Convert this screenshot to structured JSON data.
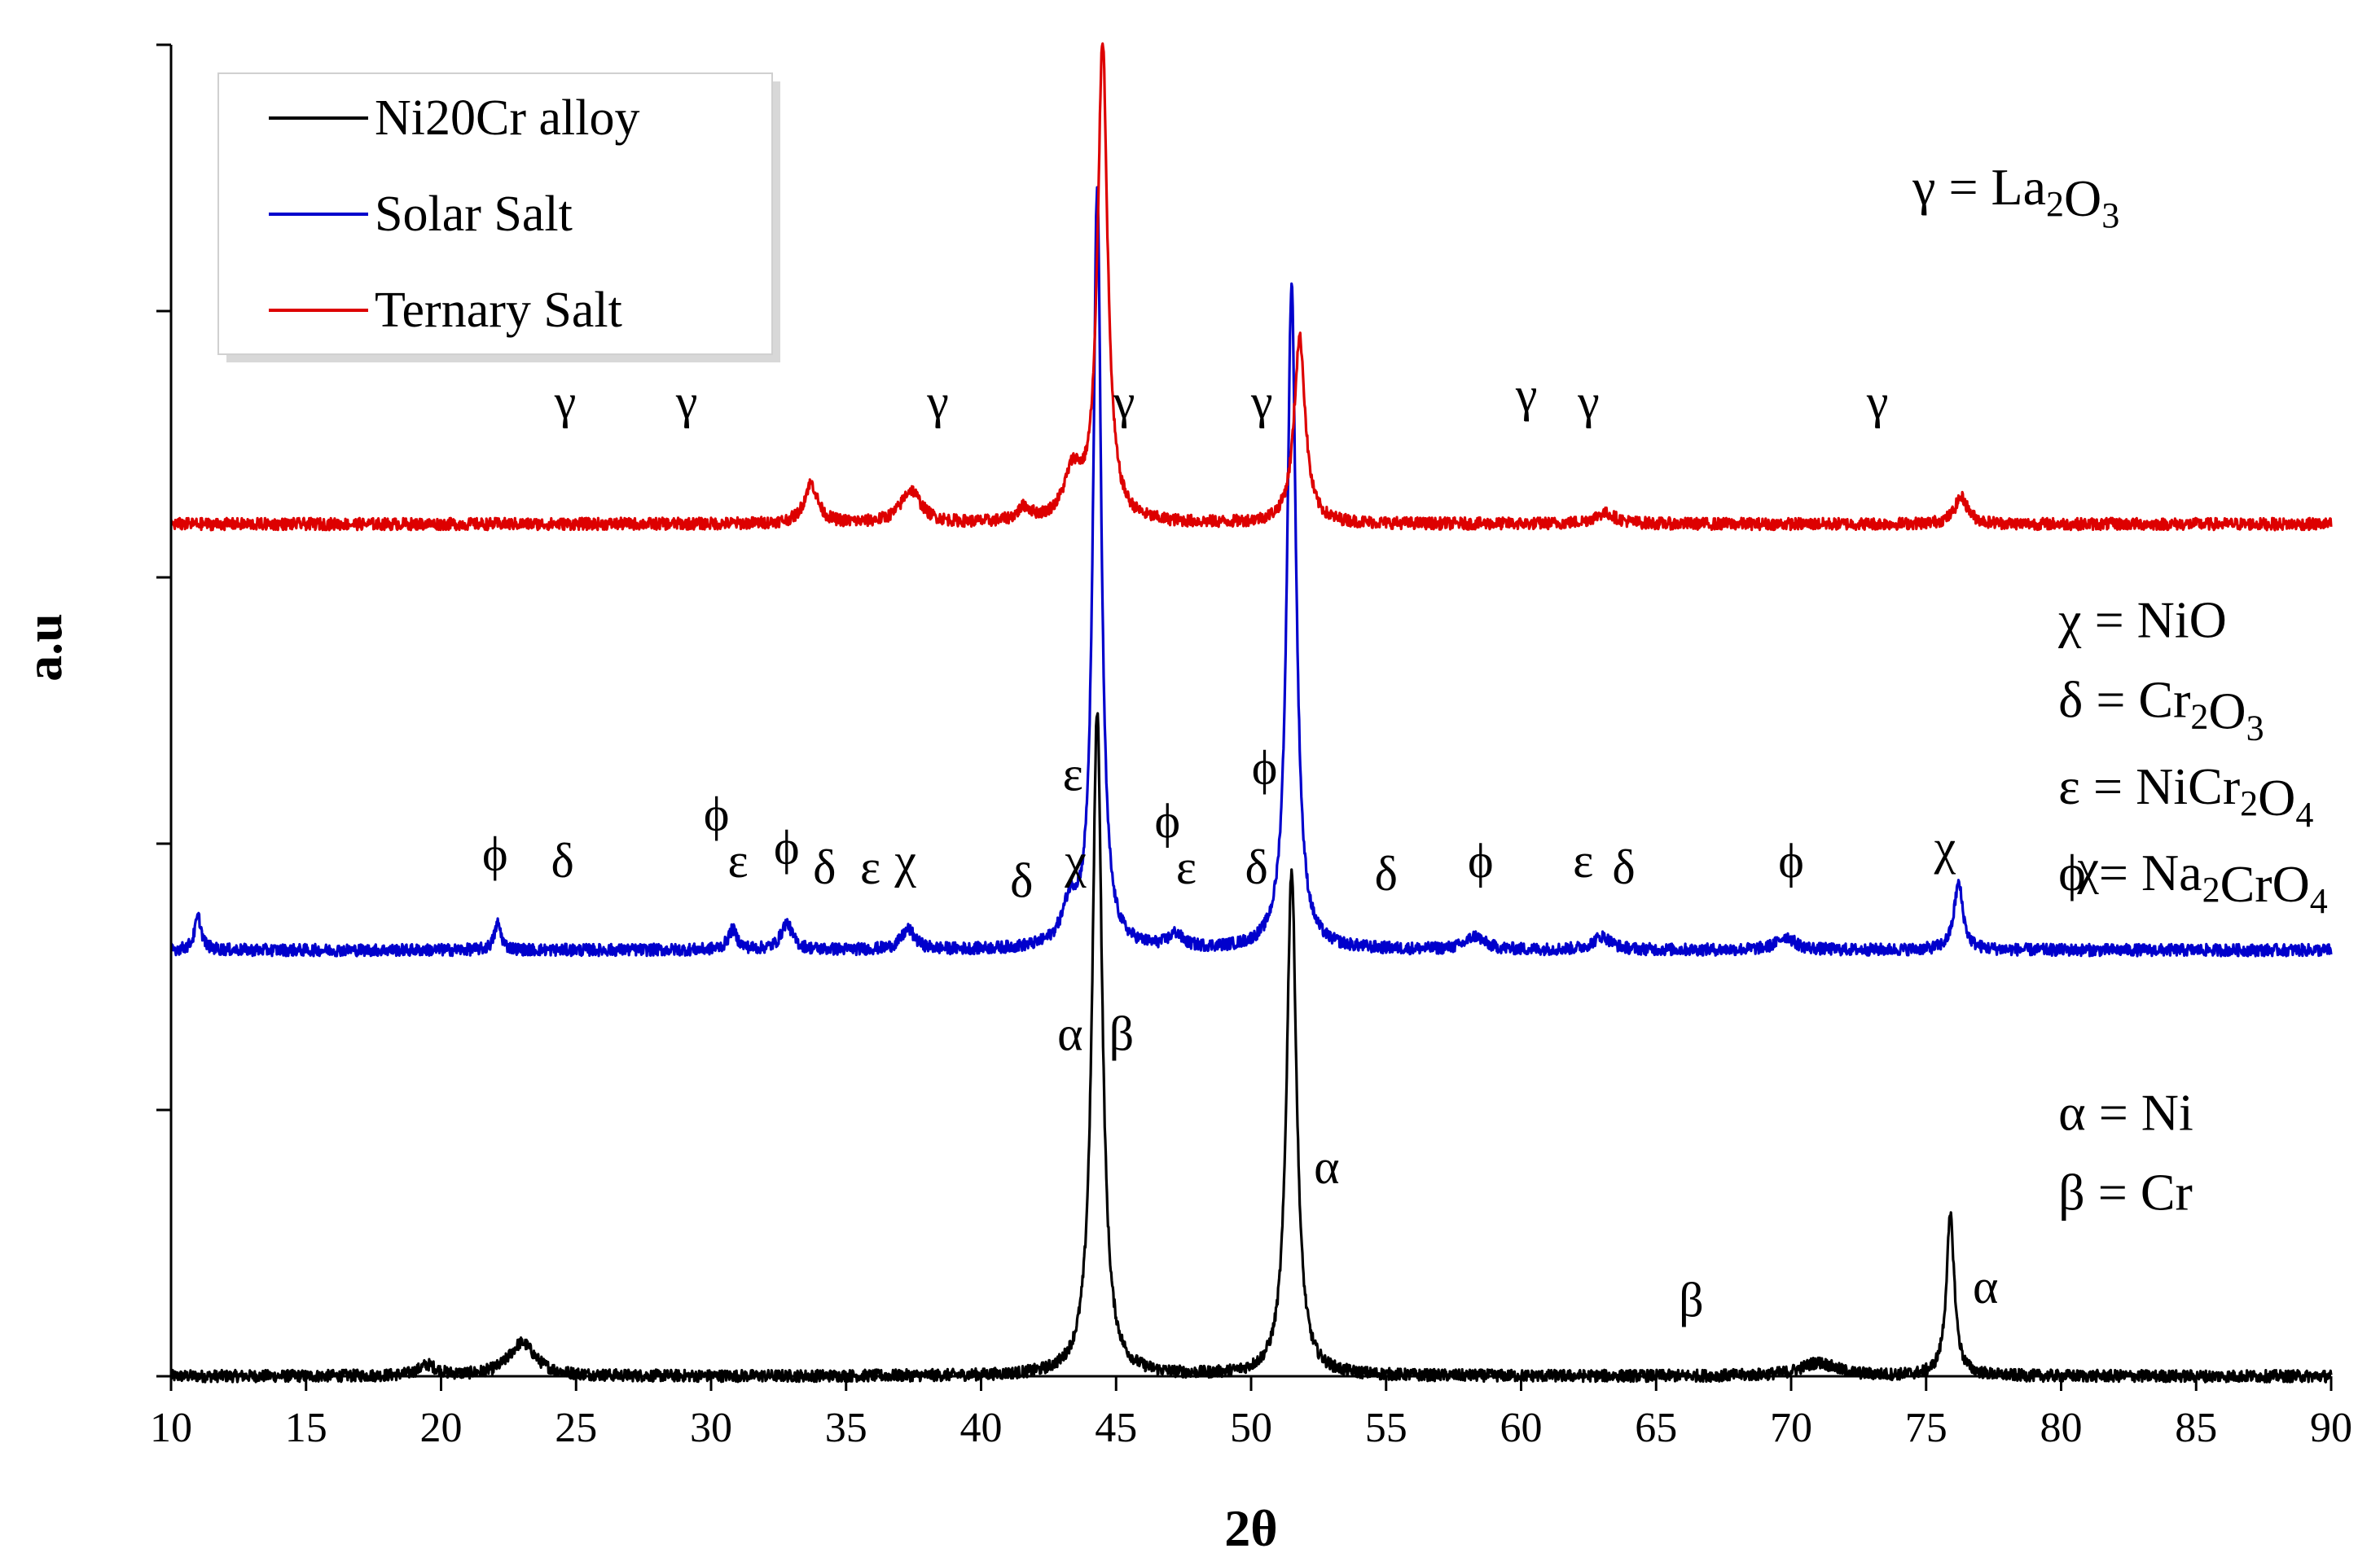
{
  "chart_data": {
    "type": "line",
    "xlabel": "2θ",
    "ylabel": "a.u",
    "xlim": [
      10,
      90
    ],
    "xticks": [
      "10",
      "15",
      "20",
      "25",
      "30",
      "35",
      "40",
      "45",
      "50",
      "55",
      "60",
      "65",
      "70",
      "75",
      "80",
      "85",
      "90"
    ],
    "ylim": [
      0,
      100
    ],
    "yticks_count": 5,
    "grid": false,
    "legend": {
      "placement": "top-left",
      "entries": [
        {
          "name": "Ni20Cr alloy",
          "color": "#000000"
        },
        {
          "name": "Solar Salt",
          "color": "#0000cc"
        },
        {
          "name": "Ternary Salt",
          "color": "#dd0000"
        }
      ]
    },
    "series": [
      {
        "name": "Ni20Cr alloy",
        "color": "#000000",
        "baseline": 0,
        "peaks": [
          {
            "x": 44.3,
            "h": 50,
            "w": 0.22
          },
          {
            "x": 51.5,
            "h": 38,
            "w": 0.22
          },
          {
            "x": 75.9,
            "h": 12,
            "w": 0.18
          },
          {
            "x": 23.0,
            "h": 2.5,
            "w": 0.6
          },
          {
            "x": 19.5,
            "h": 0.8,
            "w": 0.4
          },
          {
            "x": 71.0,
            "h": 1.0,
            "w": 0.8
          }
        ]
      },
      {
        "name": "Solar Salt",
        "color": "#0000cc",
        "baseline": 32,
        "peaks": [
          {
            "x": 44.3,
            "h": 57,
            "w": 0.18
          },
          {
            "x": 51.5,
            "h": 50,
            "w": 0.2
          },
          {
            "x": 76.2,
            "h": 5,
            "w": 0.2
          },
          {
            "x": 43.3,
            "h": 3,
            "w": 0.35
          },
          {
            "x": 11.0,
            "h": 2.5,
            "w": 0.15
          },
          {
            "x": 22.1,
            "h": 2.0,
            "w": 0.15
          },
          {
            "x": 30.8,
            "h": 1.5,
            "w": 0.2
          },
          {
            "x": 32.8,
            "h": 2.0,
            "w": 0.25
          },
          {
            "x": 37.3,
            "h": 1.5,
            "w": 0.3
          },
          {
            "x": 58.3,
            "h": 1.0,
            "w": 0.4
          },
          {
            "x": 63.0,
            "h": 1.0,
            "w": 0.4
          },
          {
            "x": 69.8,
            "h": 1.0,
            "w": 0.4
          },
          {
            "x": 47.2,
            "h": 1.0,
            "w": 0.3
          }
        ]
      },
      {
        "name": "Ternary Salt",
        "color": "#dd0000",
        "baseline": 64,
        "peaks": [
          {
            "x": 44.5,
            "h": 36,
            "w": 0.22
          },
          {
            "x": 51.8,
            "h": 14,
            "w": 0.25
          },
          {
            "x": 33.7,
            "h": 3,
            "w": 0.3
          },
          {
            "x": 37.4,
            "h": 2.5,
            "w": 0.45
          },
          {
            "x": 43.4,
            "h": 3.5,
            "w": 0.4
          },
          {
            "x": 41.6,
            "h": 1.0,
            "w": 0.3
          },
          {
            "x": 76.3,
            "h": 2,
            "w": 0.3
          },
          {
            "x": 63.1,
            "h": 0.8,
            "w": 0.5
          }
        ]
      }
    ],
    "annotations": [
      {
        "text": "γ",
        "x": 24.6,
        "y": 72
      },
      {
        "text": "γ",
        "x": 29.1,
        "y": 72
      },
      {
        "text": "γ",
        "x": 38.4,
        "y": 72
      },
      {
        "text": "γ",
        "x": 45.3,
        "y": 72
      },
      {
        "text": "γ",
        "x": 50.4,
        "y": 72
      },
      {
        "text": "γ",
        "x": 60.2,
        "y": 72.5
      },
      {
        "text": "γ",
        "x": 62.5,
        "y": 72
      },
      {
        "text": "γ",
        "x": 73.2,
        "y": 72
      },
      {
        "text": "ϕ",
        "x": 22.0,
        "y": 38
      },
      {
        "text": "δ",
        "x": 24.5,
        "y": 37.5
      },
      {
        "text": "ϕ",
        "x": 30.2,
        "y": 41
      },
      {
        "text": "ε",
        "x": 31.0,
        "y": 37.5
      },
      {
        "text": "ϕ",
        "x": 32.8,
        "y": 38.5
      },
      {
        "text": "δ",
        "x": 34.2,
        "y": 37
      },
      {
        "text": "ε",
        "x": 35.9,
        "y": 37
      },
      {
        "text": "χ",
        "x": 37.2,
        "y": 37.5
      },
      {
        "text": "δ",
        "x": 41.5,
        "y": 36
      },
      {
        "text": "χ",
        "x": 43.5,
        "y": 37.5
      },
      {
        "text": "ε",
        "x": 43.4,
        "y": 44
      },
      {
        "text": "ϕ",
        "x": 46.9,
        "y": 40.5
      },
      {
        "text": "ε",
        "x": 47.6,
        "y": 37
      },
      {
        "text": "ϕ",
        "x": 50.5,
        "y": 44.5
      },
      {
        "text": "δ",
        "x": 50.2,
        "y": 37
      },
      {
        "text": "δ",
        "x": 55.0,
        "y": 36.5
      },
      {
        "text": "ϕ",
        "x": 58.5,
        "y": 37.5
      },
      {
        "text": "ε",
        "x": 62.3,
        "y": 37.5
      },
      {
        "text": "δ",
        "x": 63.8,
        "y": 37
      },
      {
        "text": "ϕ",
        "x": 70.0,
        "y": 37.5
      },
      {
        "text": "χ",
        "x": 75.7,
        "y": 38.5
      },
      {
        "text": "χ",
        "x": 81.0,
        "y": 37
      },
      {
        "text": "α",
        "x": 43.3,
        "y": 24.5
      },
      {
        "text": "β",
        "x": 45.2,
        "y": 24.5
      },
      {
        "text": "α",
        "x": 52.8,
        "y": 14.5
      },
      {
        "text": "β",
        "x": 66.3,
        "y": 4.5
      },
      {
        "text": "α",
        "x": 77.2,
        "y": 5.5
      }
    ],
    "phase_legend": [
      {
        "symbol": "γ",
        "parts": [
          [
            "= La",
            ""
          ],
          [
            "2",
            "sub"
          ],
          [
            "O",
            ""
          ],
          [
            "3",
            "sub"
          ]
        ],
        "x": 74.5,
        "y": 88
      },
      {
        "symbol": "χ",
        "parts": [
          [
            "= NiO",
            ""
          ]
        ],
        "x": 79.9,
        "y": 55.5
      },
      {
        "symbol": "δ",
        "parts": [
          [
            "= Cr",
            ""
          ],
          [
            "2",
            "sub"
          ],
          [
            "O",
            ""
          ],
          [
            "3",
            "sub"
          ]
        ],
        "x": 79.9,
        "y": 49.5
      },
      {
        "symbol": "ε",
        "parts": [
          [
            "= NiCr",
            ""
          ],
          [
            "2",
            "sub"
          ],
          [
            "O",
            ""
          ],
          [
            "4",
            "sub"
          ]
        ],
        "x": 79.9,
        "y": 43
      },
      {
        "symbol": "ϕ",
        "parts": [
          [
            "= Na",
            ""
          ],
          [
            "2",
            "sub"
          ],
          [
            "CrO",
            ""
          ],
          [
            "4",
            "sub"
          ]
        ],
        "x": 79.9,
        "y": 36.5
      },
      {
        "symbol": "α",
        "parts": [
          [
            "= Ni",
            ""
          ]
        ],
        "x": 79.9,
        "y": 18.5
      },
      {
        "symbol": "β",
        "parts": [
          [
            "= Cr",
            ""
          ]
        ],
        "x": 79.9,
        "y": 12.5
      }
    ]
  }
}
